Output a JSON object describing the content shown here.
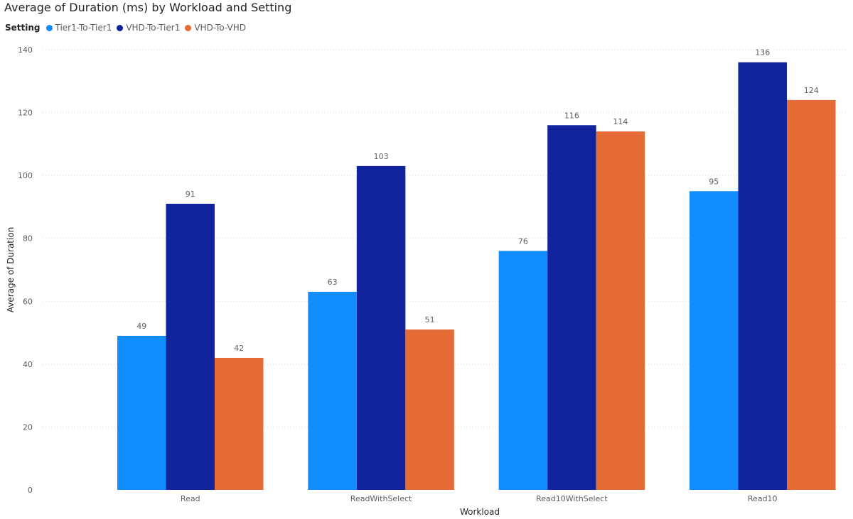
{
  "chart_data": {
    "type": "bar",
    "title": "Average of Duration (ms) by Workload and Setting",
    "legend_title": "Setting",
    "legend_position": "top-left",
    "xlabel": "Workload",
    "ylabel": "Average of Duration",
    "categories": [
      "Read",
      "ReadWithSelect",
      "Read10WithSelect",
      "Read10"
    ],
    "ylim": [
      0,
      140
    ],
    "yticks": [
      0,
      20,
      40,
      60,
      80,
      100,
      120,
      140
    ],
    "grid": true,
    "series": [
      {
        "name": "Tier1-To-Tier1",
        "color": "#118dff",
        "values": [
          49,
          63,
          76,
          95
        ]
      },
      {
        "name": "VHD-To-Tier1",
        "color": "#12239e",
        "values": [
          91,
          103,
          116,
          136
        ]
      },
      {
        "name": "VHD-To-VHD",
        "color": "#e66c37",
        "values": [
          42,
          51,
          114,
          124
        ]
      }
    ]
  }
}
